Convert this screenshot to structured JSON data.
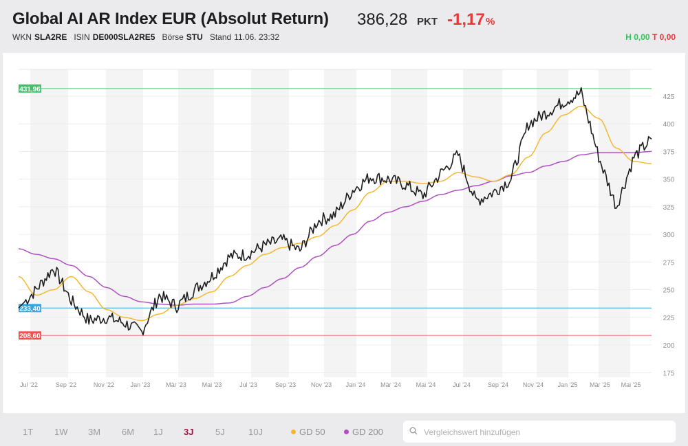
{
  "header": {
    "title": "Global AI AR Index EUR (Absolut Return)",
    "price": "386,28",
    "unit": "PKT",
    "change": "-1,17",
    "change_unit": "%",
    "wkn_label": "WKN",
    "wkn": "SLA2RE",
    "isin_label": "ISIN",
    "isin": "DE000SLA2RE5",
    "exchange_label": "Börse",
    "exchange": "STU",
    "stand_label": "Stand",
    "stand": "11.06. 23:32",
    "high_label": "H",
    "high": "0,00",
    "low_label": "T",
    "low": "0,00"
  },
  "colors": {
    "price_line": "#1d1d1f",
    "gd50": "#f5b82e",
    "gd200": "#b04fc4",
    "max_line": "#3dc46b",
    "current_line": "#2fa8e6",
    "min_line": "#ef5350",
    "negative": "#e5383b",
    "positive": "#33c15a",
    "active_range": "#a3143c"
  },
  "footer": {
    "ranges": [
      {
        "label": "1T",
        "active": false
      },
      {
        "label": "1W",
        "active": false
      },
      {
        "label": "3M",
        "active": false
      },
      {
        "label": "6M",
        "active": false
      },
      {
        "label": "1J",
        "active": false
      },
      {
        "label": "3J",
        "active": true
      },
      {
        "label": "5J",
        "active": false
      },
      {
        "label": "10J",
        "active": false
      }
    ],
    "legend": [
      {
        "label": "GD 50",
        "color": "#f5b82e"
      },
      {
        "label": "GD 200",
        "color": "#b04fc4"
      }
    ],
    "search_placeholder": "Vergleichswert hinzufügen"
  },
  "chart_data": {
    "type": "line",
    "title": "Global AI AR Index EUR (Absolut Return)",
    "xlabel": "",
    "ylabel": "",
    "ylim": [
      175,
      435
    ],
    "yticks": [
      175,
      200,
      225,
      250,
      275,
      300,
      325,
      350,
      375,
      400,
      425
    ],
    "x_tick_labels": [
      "Jul '22",
      "Sep '22",
      "Nov '22",
      "Jan '23",
      "Mär '23",
      "Mai '23",
      "Jul '23",
      "Sep '23",
      "Nov '23",
      "Jan '24",
      "Mär '24",
      "Mai '24",
      "Jul '24",
      "Sep '24",
      "Nov '24",
      "Jan '25",
      "Mär '25",
      "Mai '25"
    ],
    "grid": true,
    "legend_position": "bottom",
    "reference_lines": [
      {
        "label": "431,96",
        "value": 431.96,
        "color": "#3dc46b",
        "meaning": "max"
      },
      {
        "label": "233,40",
        "value": 233.4,
        "color": "#2fa8e6",
        "meaning": "start"
      },
      {
        "label": "208,60",
        "value": 208.6,
        "color": "#ef5350",
        "meaning": "min"
      }
    ],
    "x": [
      "Jun '22",
      "Jul '22",
      "Aug '22",
      "Sep '22",
      "Okt '22",
      "Nov '22",
      "Dez '22",
      "Jan '23",
      "Feb '23",
      "Mär '23",
      "Apr '23",
      "Mai '23",
      "Jun '23",
      "Jul '23",
      "Aug '23",
      "Sep '23",
      "Okt '23",
      "Nov '23",
      "Dez '23",
      "Jan '24",
      "Feb '24",
      "Mär '24",
      "Apr '24",
      "Mai '24",
      "Jun '24",
      "Jul '24",
      "Aug '24",
      "Sep '24",
      "Okt '24",
      "Nov '24",
      "Dez '24",
      "Jan '25",
      "Feb '25",
      "Mär '25",
      "Apr '25",
      "Mai '25",
      "Jun '25"
    ],
    "series": [
      {
        "name": "Kurs",
        "values": [
          233.4,
          250,
          270,
          240,
          222,
          225,
          220,
          212,
          245,
          235,
          250,
          262,
          280,
          282,
          290,
          295,
          285,
          312,
          318,
          340,
          352,
          350,
          345,
          335,
          355,
          372,
          330,
          338,
          350,
          400,
          410,
          420,
          428,
          370,
          325,
          370,
          386.28
        ]
      },
      {
        "name": "GD 50",
        "values": [
          262,
          245,
          250,
          262,
          248,
          232,
          225,
          222,
          228,
          236,
          242,
          248,
          262,
          272,
          282,
          288,
          292,
          298,
          308,
          322,
          338,
          348,
          348,
          346,
          348,
          356,
          352,
          348,
          354,
          370,
          392,
          408,
          416,
          405,
          378,
          366,
          364
        ]
      },
      {
        "name": "GD 200",
        "values": [
          287,
          282,
          278,
          272,
          262,
          252,
          244,
          239,
          237,
          236,
          237,
          237,
          238,
          244,
          252,
          260,
          270,
          280,
          290,
          300,
          312,
          320,
          325,
          330,
          336,
          340,
          344,
          348,
          353,
          356,
          362,
          366,
          372,
          374,
          374,
          374,
          375
        ]
      }
    ]
  }
}
